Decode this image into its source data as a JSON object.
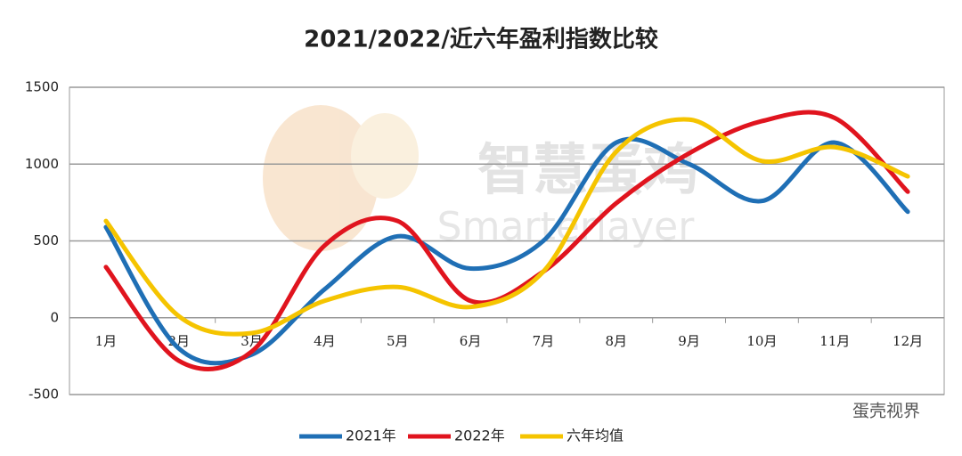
{
  "chart_data": {
    "type": "line",
    "title": "2021/2022/近六年盈利指数比较",
    "categories": [
      "1月",
      "2月",
      "3月",
      "4月",
      "5月",
      "6月",
      "7月",
      "8月",
      "9月",
      "10月",
      "11月",
      "12月"
    ],
    "series": [
      {
        "name": "2021年",
        "color": "#1f6fb5",
        "values": [
          590,
          -200,
          -240,
          185,
          530,
          320,
          500,
          1140,
          1000,
          760,
          1140,
          690
        ]
      },
      {
        "name": "2022年",
        "color": "#e0141e",
        "values": [
          330,
          -280,
          -220,
          470,
          630,
          110,
          300,
          745,
          1070,
          1280,
          1300,
          820
        ]
      },
      {
        "name": "六年均值",
        "color": "#f5c400",
        "values": [
          630,
          10,
          -100,
          110,
          200,
          70,
          300,
          1080,
          1290,
          1020,
          1110,
          920
        ]
      }
    ],
    "ylim": [
      -500,
      1500
    ],
    "yticks": [
      -500,
      0,
      500,
      1000,
      1500
    ],
    "grid": true,
    "legend": "bottom",
    "watermarks": [
      "智慧蛋鸡",
      "Smarterlayer",
      "蛋壳视界"
    ]
  }
}
